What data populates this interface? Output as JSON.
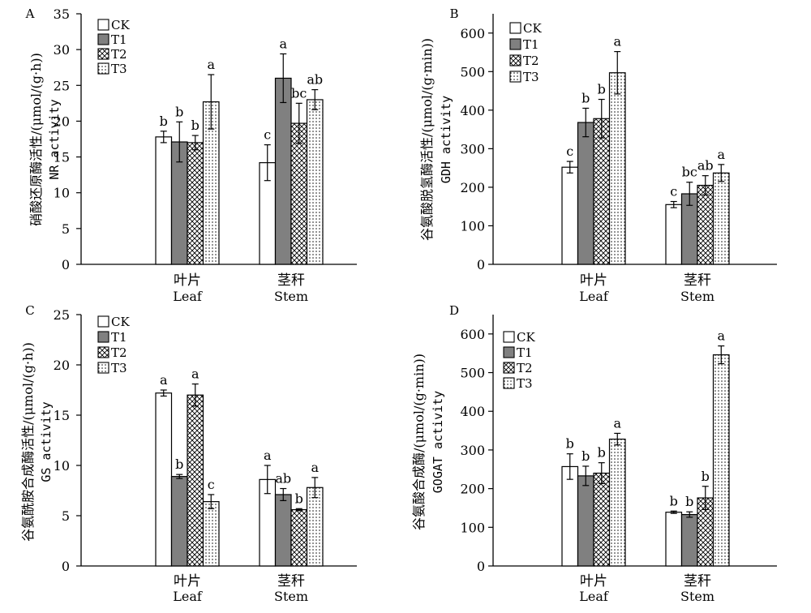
{
  "chart_data": [
    {
      "panel": "A",
      "type": "bar",
      "categories": [
        {
          "zh": "叶片",
          "en": "Leaf"
        },
        {
          "zh": "茎秆",
          "en": "Stem"
        }
      ],
      "ylabel_zh": "硝酸还原酶活性/(μmol/(g·h))",
      "ylabel_en": "NR activity",
      "ylim": [
        0,
        35
      ],
      "yticks": [
        0,
        5,
        10,
        15,
        20,
        25,
        30,
        35
      ],
      "series": [
        {
          "name": "CK",
          "values": [
            17.8,
            14.2
          ],
          "errors": [
            0.8,
            2.5
          ],
          "letters": [
            "b",
            "c"
          ]
        },
        {
          "name": "T1",
          "values": [
            17.1,
            26.0
          ],
          "errors": [
            2.8,
            3.4
          ],
          "letters": [
            "b",
            "a"
          ]
        },
        {
          "name": "T2",
          "values": [
            17.0,
            19.7
          ],
          "errors": [
            1.0,
            2.8
          ],
          "letters": [
            "b",
            "bc"
          ]
        },
        {
          "name": "T3",
          "values": [
            22.7,
            23.0
          ],
          "errors": [
            3.8,
            1.4
          ],
          "letters": [
            "a",
            "ab"
          ]
        }
      ]
    },
    {
      "panel": "B",
      "type": "bar",
      "categories": [
        {
          "zh": "叶片",
          "en": "Leaf"
        },
        {
          "zh": "茎秆",
          "en": "Stem"
        }
      ],
      "ylabel_zh": "谷氨酸脱氢酶活性/(μmol/(g·min))",
      "ylabel_en": "GDH activity",
      "ylim": [
        0,
        650
      ],
      "yticks": [
        0,
        100,
        200,
        300,
        400,
        500,
        600
      ],
      "series": [
        {
          "name": "CK",
          "values": [
            252,
            155
          ],
          "errors": [
            15,
            8
          ],
          "letters": [
            "c",
            "c"
          ]
        },
        {
          "name": "T1",
          "values": [
            368,
            183
          ],
          "errors": [
            37,
            30
          ],
          "letters": [
            "b",
            "bc"
          ]
        },
        {
          "name": "T2",
          "values": [
            378,
            205
          ],
          "errors": [
            50,
            25
          ],
          "letters": [
            "b",
            "ab"
          ]
        },
        {
          "name": "T3",
          "values": [
            497,
            237
          ],
          "errors": [
            55,
            22
          ],
          "letters": [
            "a",
            "a"
          ]
        }
      ]
    },
    {
      "panel": "C",
      "type": "bar",
      "categories": [
        {
          "zh": "叶片",
          "en": "Leaf"
        },
        {
          "zh": "茎秆",
          "en": "Stem"
        }
      ],
      "ylabel_zh": "谷氨酰胺合成酶活性/(μmol/(g·h))",
      "ylabel_en": "GS activity",
      "ylim": [
        0,
        25
      ],
      "yticks": [
        0,
        5,
        10,
        15,
        20,
        25
      ],
      "series": [
        {
          "name": "CK",
          "values": [
            17.2,
            8.6
          ],
          "errors": [
            0.3,
            1.4
          ],
          "letters": [
            "a",
            "a"
          ]
        },
        {
          "name": "T1",
          "values": [
            8.9,
            7.1
          ],
          "errors": [
            0.2,
            0.6
          ],
          "letters": [
            "b",
            "ab"
          ]
        },
        {
          "name": "T2",
          "values": [
            17.0,
            5.6
          ],
          "errors": [
            1.1,
            0.1
          ],
          "letters": [
            "a",
            "b"
          ]
        },
        {
          "name": "T3",
          "values": [
            6.4,
            7.8
          ],
          "errors": [
            0.7,
            1.0
          ],
          "letters": [
            "c",
            "a"
          ]
        }
      ]
    },
    {
      "panel": "D",
      "type": "bar",
      "categories": [
        {
          "zh": "叶片",
          "en": "Leaf"
        },
        {
          "zh": "茎秆",
          "en": "Stem"
        }
      ],
      "ylabel_zh": "谷氨酸合成酶/(μmol/(g·min))",
      "ylabel_en": "GOGAT activity",
      "ylim": [
        0,
        650
      ],
      "yticks": [
        0,
        100,
        200,
        300,
        400,
        500,
        600
      ],
      "series": [
        {
          "name": "CK",
          "values": [
            257,
            139
          ],
          "errors": [
            33,
            3
          ],
          "letters": [
            "b",
            "b"
          ]
        },
        {
          "name": "T1",
          "values": [
            233,
            133
          ],
          "errors": [
            25,
            7
          ],
          "letters": [
            "b",
            "b"
          ]
        },
        {
          "name": "T2",
          "values": [
            240,
            176
          ],
          "errors": [
            27,
            30
          ],
          "letters": [
            "b",
            "b"
          ]
        },
        {
          "name": "T3",
          "values": [
            328,
            546
          ],
          "errors": [
            15,
            23
          ],
          "letters": [
            "a",
            "a"
          ]
        }
      ]
    }
  ]
}
